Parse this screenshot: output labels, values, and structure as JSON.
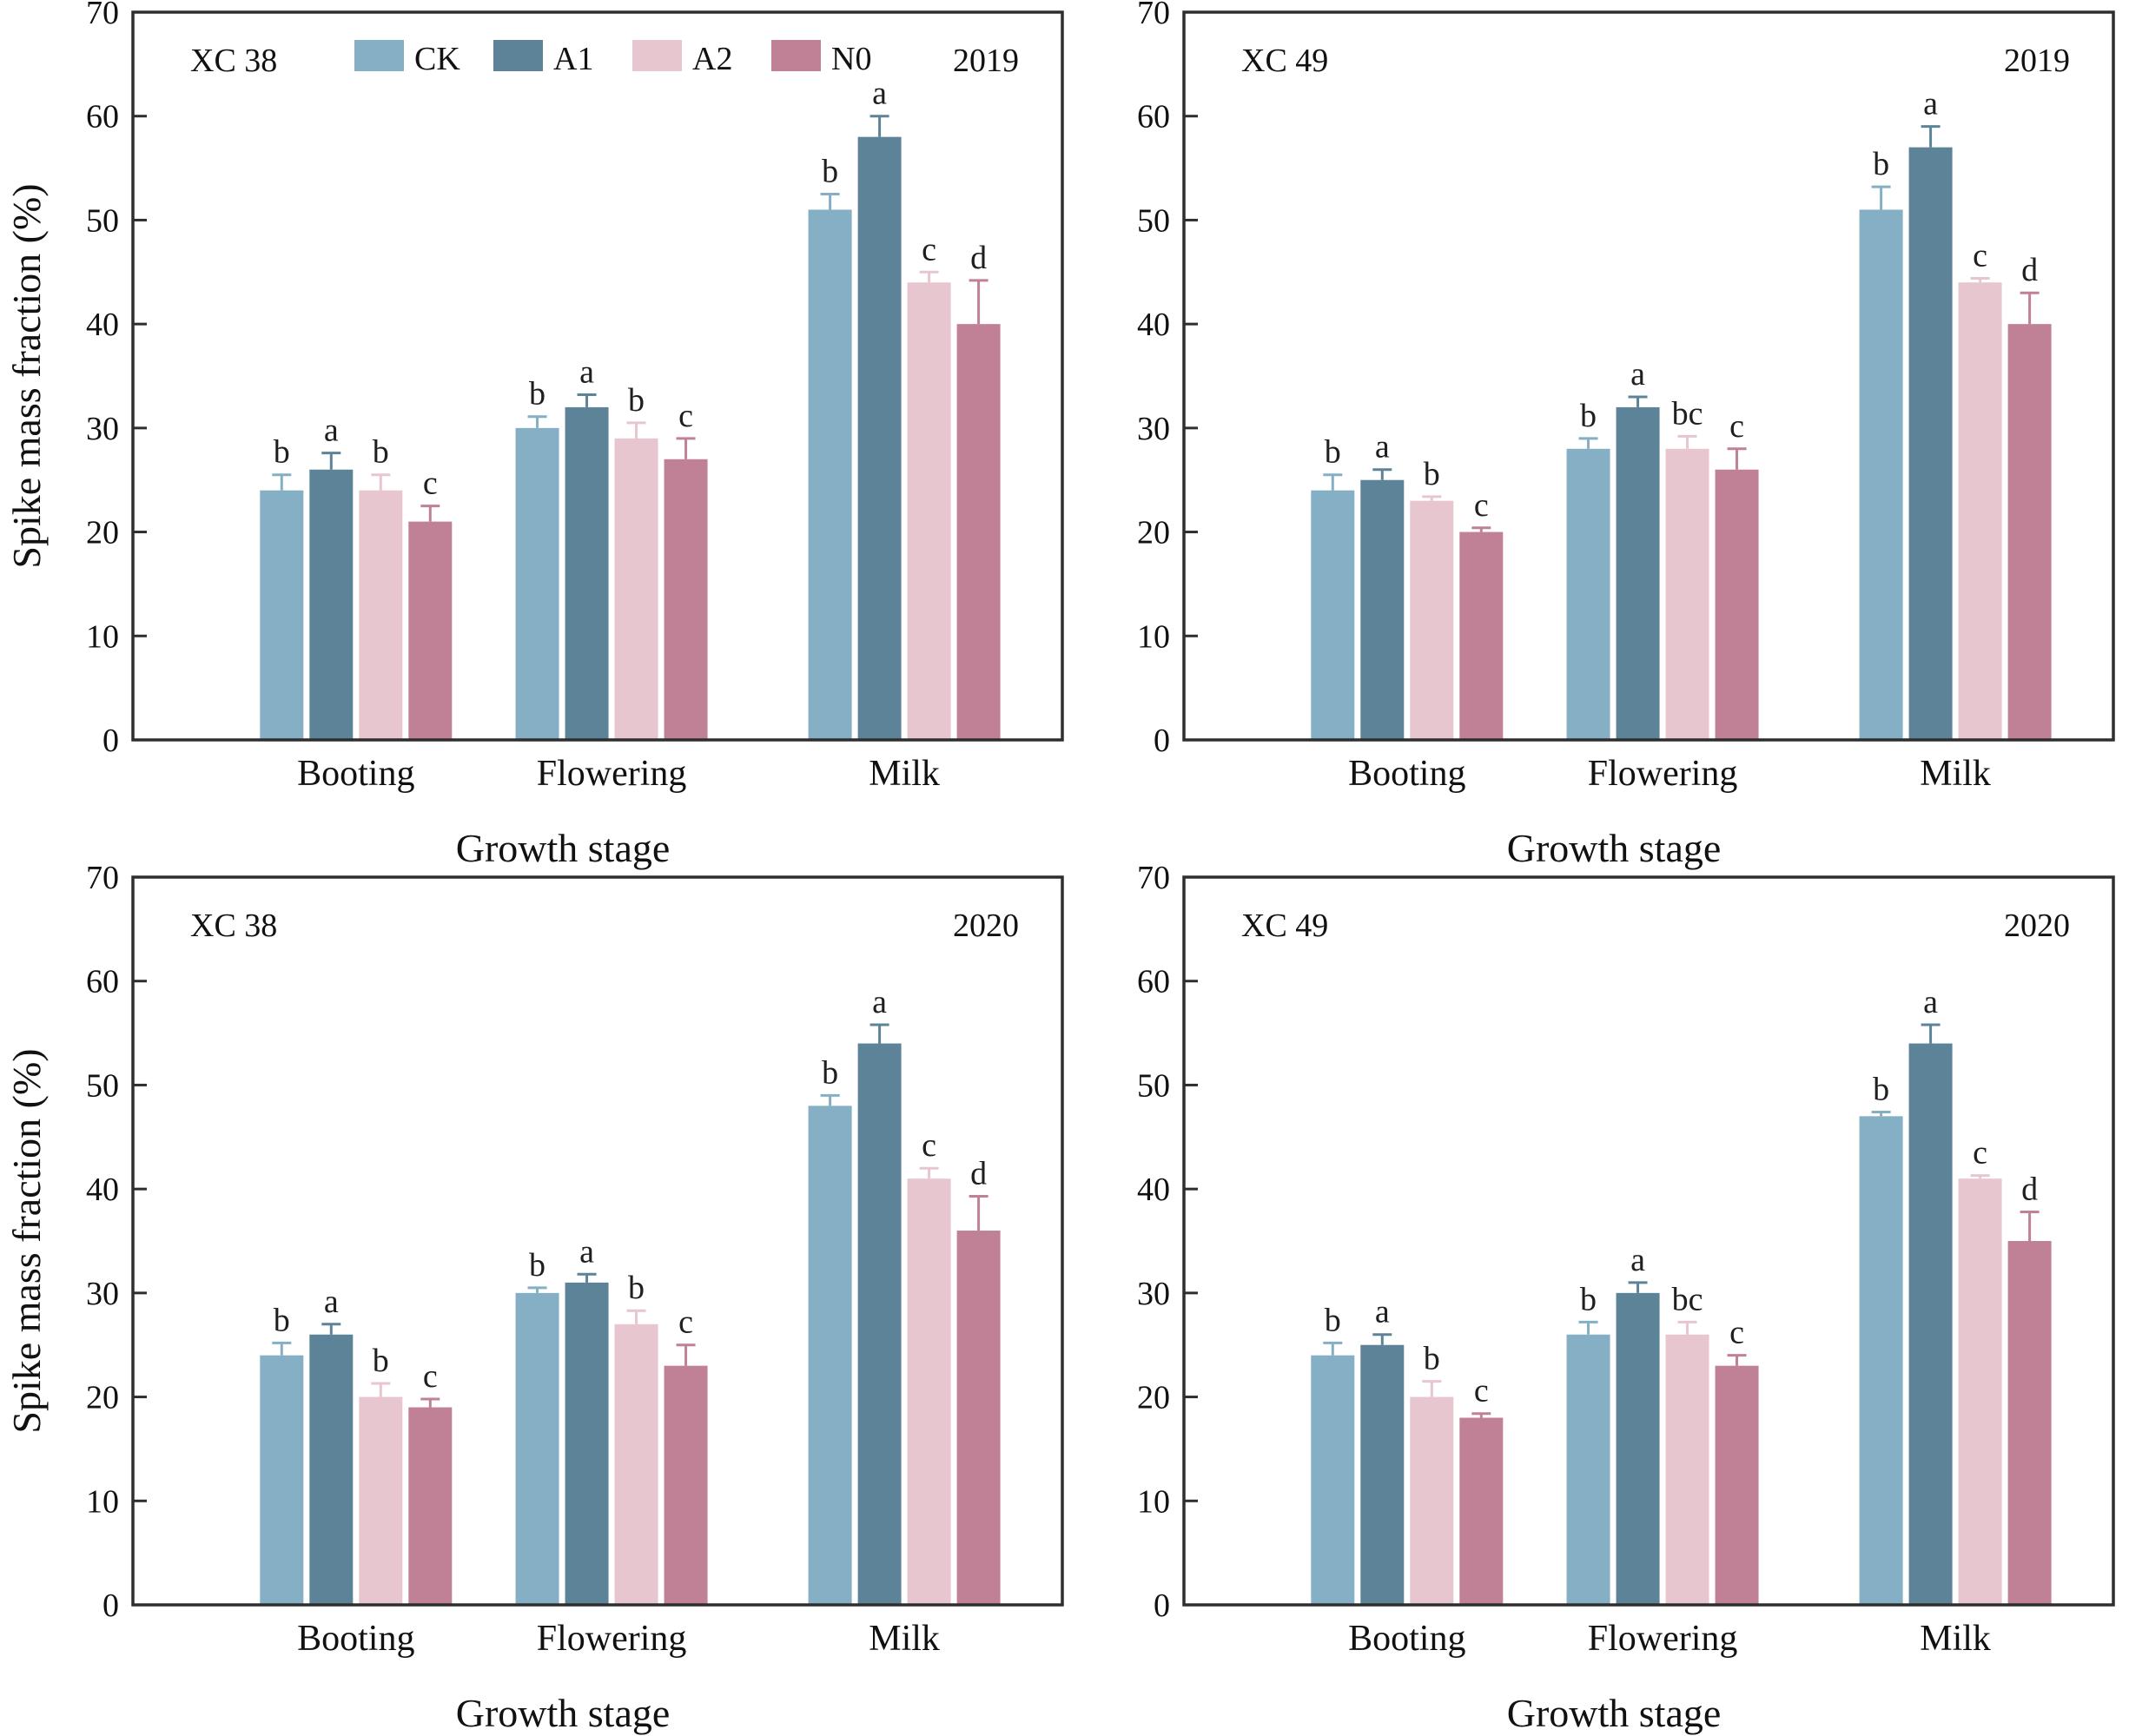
{
  "shared": {
    "ylabel": "Spike mass fraction (%)",
    "xlabel": "Growth stage",
    "axis_color": "#2e2e2e",
    "letter_color": "#1f1f1f",
    "background": "#ffffff"
  },
  "legend": {
    "position": "top-inside-first-panel",
    "entries": [
      {
        "label": "CK",
        "color": "#85afc4"
      },
      {
        "label": "A1",
        "color": "#5d8398"
      },
      {
        "label": "A2",
        "color": "#e7c6cf"
      },
      {
        "label": "N0",
        "color": "#c08096"
      }
    ]
  },
  "chart_data": [
    {
      "type": "bar",
      "position": "top-left",
      "title": "XC 38",
      "year": "2019",
      "show_legend": true,
      "xlabel": "Growth stage",
      "ylabel": "Spike mass fraction (%)",
      "ylim": [
        0,
        70
      ],
      "yticks": [
        0,
        10,
        20,
        30,
        40,
        50,
        60,
        70
      ],
      "grid": false,
      "categories": [
        "Booting",
        "Flowering",
        "Milk"
      ],
      "series": [
        {
          "name": "CK",
          "color": "#85afc4",
          "values": [
            24,
            30,
            51
          ],
          "errors": [
            1.5,
            1.1,
            1.5
          ],
          "letters": [
            "b",
            "b",
            "b"
          ]
        },
        {
          "name": "A1",
          "color": "#5d8398",
          "values": [
            26,
            32,
            58
          ],
          "errors": [
            1.6,
            1.2,
            2.0
          ],
          "letters": [
            "a",
            "a",
            "a"
          ]
        },
        {
          "name": "A2",
          "color": "#e7c6cf",
          "values": [
            24,
            29,
            44
          ],
          "errors": [
            1.5,
            1.5,
            1.0
          ],
          "letters": [
            "b",
            "b",
            "c"
          ]
        },
        {
          "name": "N0",
          "color": "#c08096",
          "values": [
            21,
            27,
            40
          ],
          "errors": [
            1.5,
            2.0,
            4.2
          ],
          "letters": [
            "c",
            "c",
            "d"
          ]
        }
      ]
    },
    {
      "type": "bar",
      "position": "top-right",
      "title": "XC 49",
      "year": "2019",
      "show_legend": false,
      "xlabel": "Growth stage",
      "ylabel": "Spike mass fraction (%)",
      "ylim": [
        0,
        70
      ],
      "yticks": [
        0,
        10,
        20,
        30,
        40,
        50,
        60,
        70
      ],
      "grid": false,
      "categories": [
        "Booting",
        "Flowering",
        "Milk"
      ],
      "series": [
        {
          "name": "CK",
          "color": "#85afc4",
          "values": [
            24,
            28,
            51
          ],
          "errors": [
            1.5,
            1.0,
            2.2
          ],
          "letters": [
            "b",
            "b",
            "b"
          ]
        },
        {
          "name": "A1",
          "color": "#5d8398",
          "values": [
            25,
            32,
            57
          ],
          "errors": [
            1.0,
            1.0,
            2.0
          ],
          "letters": [
            "a",
            "a",
            "a"
          ]
        },
        {
          "name": "A2",
          "color": "#e7c6cf",
          "values": [
            23,
            28,
            44
          ],
          "errors": [
            0.4,
            1.2,
            0.4
          ],
          "letters": [
            "b",
            "bc",
            "c"
          ]
        },
        {
          "name": "N0",
          "color": "#c08096",
          "values": [
            20,
            26,
            40
          ],
          "errors": [
            0.4,
            2.0,
            3.0
          ],
          "letters": [
            "c",
            "c",
            "d"
          ]
        }
      ]
    },
    {
      "type": "bar",
      "position": "bottom-left",
      "title": "XC 38",
      "year": "2020",
      "show_legend": false,
      "xlabel": "Growth stage",
      "ylabel": "Spike mass fraction (%)",
      "ylim": [
        0,
        70
      ],
      "yticks": [
        0,
        10,
        20,
        30,
        40,
        50,
        60,
        70
      ],
      "grid": false,
      "categories": [
        "Booting",
        "Flowering",
        "Milk"
      ],
      "series": [
        {
          "name": "CK",
          "color": "#85afc4",
          "values": [
            24,
            30,
            48
          ],
          "errors": [
            1.2,
            0.5,
            1.0
          ],
          "letters": [
            "b",
            "b",
            "b"
          ]
        },
        {
          "name": "A1",
          "color": "#5d8398",
          "values": [
            26,
            31,
            54
          ],
          "errors": [
            1.0,
            0.8,
            1.8
          ],
          "letters": [
            "a",
            "a",
            "a"
          ]
        },
        {
          "name": "A2",
          "color": "#e7c6cf",
          "values": [
            20,
            27,
            41
          ],
          "errors": [
            1.3,
            1.3,
            1.0
          ],
          "letters": [
            "b",
            "b",
            "c"
          ]
        },
        {
          "name": "N0",
          "color": "#c08096",
          "values": [
            19,
            23,
            36
          ],
          "errors": [
            0.8,
            2.0,
            3.3
          ],
          "letters": [
            "c",
            "c",
            "d"
          ]
        }
      ]
    },
    {
      "type": "bar",
      "position": "bottom-right",
      "title": "XC 49",
      "year": "2020",
      "show_legend": false,
      "xlabel": "Growth stage",
      "ylabel": "Spike mass fraction (%)",
      "ylim": [
        0,
        70
      ],
      "yticks": [
        0,
        10,
        20,
        30,
        40,
        50,
        60,
        70
      ],
      "grid": false,
      "categories": [
        "Booting",
        "Flowering",
        "Milk"
      ],
      "series": [
        {
          "name": "CK",
          "color": "#85afc4",
          "values": [
            24,
            26,
            47
          ],
          "errors": [
            1.2,
            1.2,
            0.4
          ],
          "letters": [
            "b",
            "b",
            "b"
          ]
        },
        {
          "name": "A1",
          "color": "#5d8398",
          "values": [
            25,
            30,
            54
          ],
          "errors": [
            1.0,
            1.0,
            1.8
          ],
          "letters": [
            "a",
            "a",
            "a"
          ]
        },
        {
          "name": "A2",
          "color": "#e7c6cf",
          "values": [
            20,
            26,
            41
          ],
          "errors": [
            1.5,
            1.2,
            0.3
          ],
          "letters": [
            "b",
            "bc",
            "c"
          ]
        },
        {
          "name": "N0",
          "color": "#c08096",
          "values": [
            18,
            23,
            35
          ],
          "errors": [
            0.4,
            1.0,
            2.8
          ],
          "letters": [
            "c",
            "c",
            "d"
          ]
        }
      ]
    }
  ]
}
